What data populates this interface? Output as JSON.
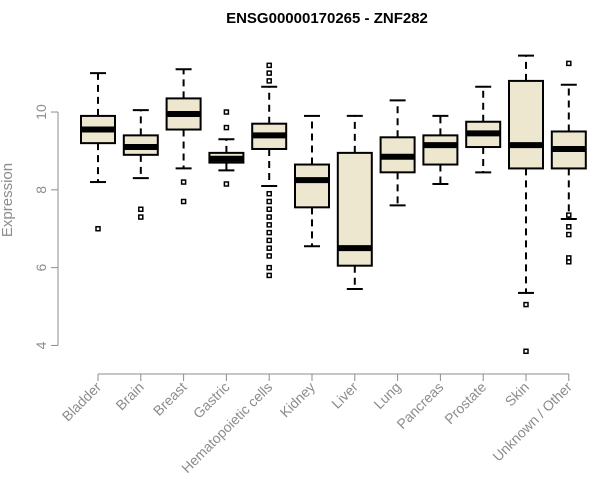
{
  "chart_data": {
    "type": "box",
    "title": "ENSG00000170265 - ZNF282",
    "xlabel": "",
    "ylabel": "Expression",
    "ylim": [
      3.6,
      11.8
    ],
    "yticks": [
      4,
      6,
      8,
      10
    ],
    "grid": false,
    "legend": "none",
    "box_fill": "#ede7cf",
    "categories": [
      "Bladder",
      "Brain",
      "Breast",
      "Gastric",
      "Hematopoietic cells",
      "Kidney",
      "Liver",
      "Lung",
      "Pancreas",
      "Prostate",
      "Skin",
      "Unknown / Other"
    ],
    "series": [
      {
        "category": "Bladder",
        "min": 8.2,
        "q1": 9.2,
        "median": 9.55,
        "q3": 9.9,
        "max": 11.0,
        "outliers": [
          7.0
        ]
      },
      {
        "category": "Brain",
        "min": 8.3,
        "q1": 8.9,
        "median": 9.1,
        "q3": 9.4,
        "max": 10.05,
        "outliers": [
          7.5,
          7.3
        ]
      },
      {
        "category": "Breast",
        "min": 8.55,
        "q1": 9.55,
        "median": 9.95,
        "q3": 10.35,
        "max": 11.1,
        "outliers": [
          8.2,
          7.7
        ]
      },
      {
        "category": "Gastric",
        "min": 8.5,
        "q1": 8.7,
        "median": 8.8,
        "q3": 8.95,
        "max": 9.3,
        "outliers": [
          10.0,
          9.6,
          8.15
        ]
      },
      {
        "category": "Hematopoietic cells",
        "min": 8.1,
        "q1": 9.05,
        "median": 9.4,
        "q3": 9.7,
        "max": 10.65,
        "outliers": [
          11.2,
          11.0,
          10.8,
          7.9,
          7.7,
          7.5,
          7.3,
          7.1,
          6.9,
          6.7,
          6.5,
          6.3,
          6.0,
          5.8
        ]
      },
      {
        "category": "Kidney",
        "min": 6.55,
        "q1": 7.55,
        "median": 8.25,
        "q3": 8.65,
        "max": 9.9,
        "outliers": []
      },
      {
        "category": "Liver",
        "min": 5.45,
        "q1": 6.05,
        "median": 6.5,
        "q3": 8.95,
        "max": 9.9,
        "outliers": []
      },
      {
        "category": "Lung",
        "min": 7.6,
        "q1": 8.45,
        "median": 8.85,
        "q3": 9.35,
        "max": 10.3,
        "outliers": []
      },
      {
        "category": "Pancreas",
        "min": 8.15,
        "q1": 8.65,
        "median": 9.15,
        "q3": 9.4,
        "max": 9.9,
        "outliers": []
      },
      {
        "category": "Prostate",
        "min": 8.45,
        "q1": 9.1,
        "median": 9.45,
        "q3": 9.75,
        "max": 10.65,
        "outliers": []
      },
      {
        "category": "Skin",
        "min": 5.35,
        "q1": 8.55,
        "median": 9.15,
        "q3": 10.8,
        "max": 11.45,
        "outliers": [
          5.05,
          3.85
        ]
      },
      {
        "category": "Unknown / Other",
        "min": 7.25,
        "q1": 8.55,
        "median": 9.05,
        "q3": 9.5,
        "max": 10.7,
        "outliers": [
          11.25,
          7.35,
          7.05,
          6.85,
          6.25,
          6.15
        ]
      }
    ]
  }
}
